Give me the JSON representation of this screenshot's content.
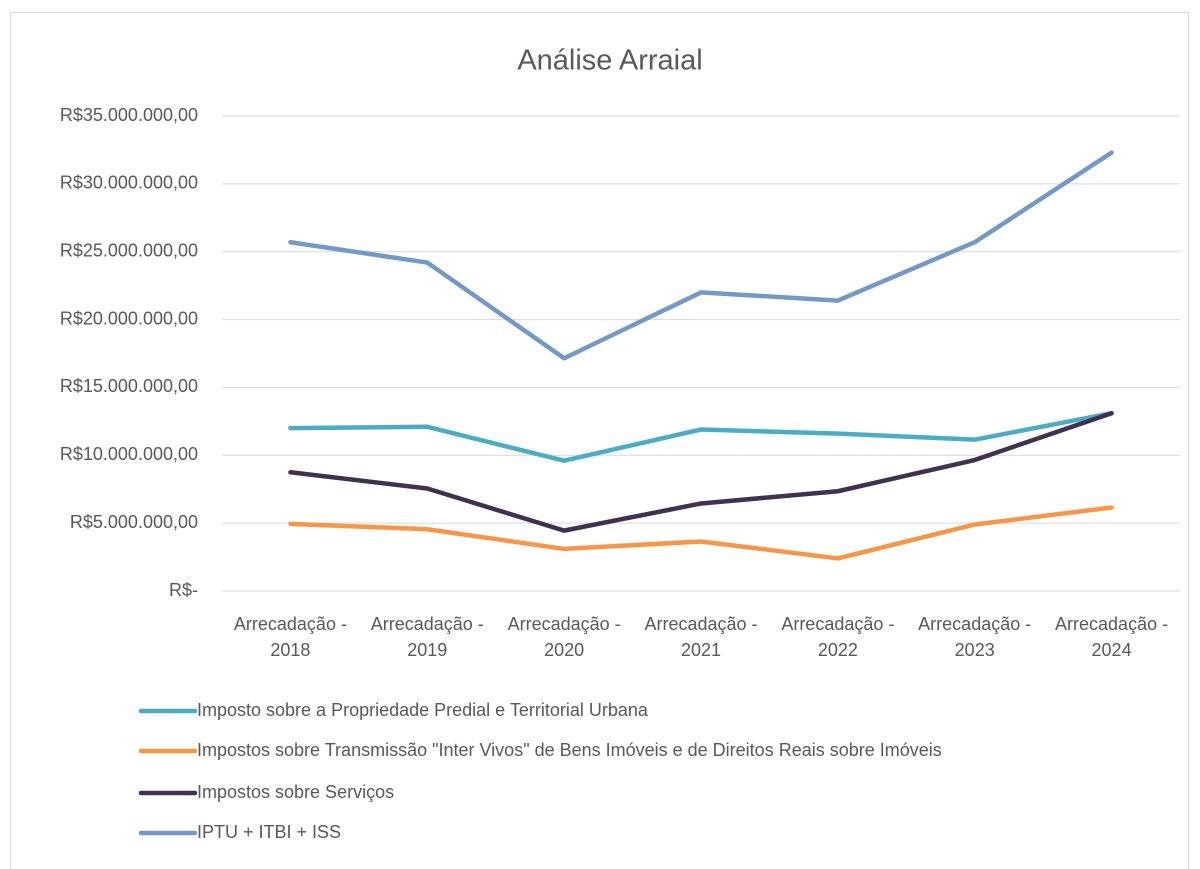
{
  "chart_data": {
    "type": "line",
    "title": "Análise Arraial",
    "categories": [
      "Arrecadação - 2018",
      "Arrecadação - 2019",
      "Arrecadação - 2020",
      "Arrecadação - 2021",
      "Arrecadação - 2022",
      "Arrecadação - 2023",
      "Arrecadação - 2024"
    ],
    "series": [
      {
        "name": "Imposto sobre a Propriedade Predial e Territorial Urbana",
        "color": "#4bacc6",
        "values": [
          12000000,
          12100000,
          9600000,
          11900000,
          11600000,
          11150000,
          13100000
        ]
      },
      {
        "name": "Impostos sobre Transmissão \"Inter Vivos\" de Bens Imóveis e de Direitos Reais sobre Imóveis",
        "color": "#f79646",
        "values": [
          4950000,
          4550000,
          3100000,
          3650000,
          2400000,
          4900000,
          6150000
        ]
      },
      {
        "name": "Impostos sobre Serviços",
        "color": "#403152",
        "values": [
          8750000,
          7550000,
          4450000,
          6450000,
          7350000,
          9650000,
          13100000
        ]
      },
      {
        "name": "IPTU + ITBI + ISS",
        "color": "#7399c6",
        "values": [
          25700000,
          24200000,
          17150000,
          22000000,
          21400000,
          25700000,
          32300000
        ]
      }
    ],
    "ylim": [
      0,
      35000000
    ],
    "yticks": [
      {
        "value": 0,
        "label": "R$-"
      },
      {
        "value": 5000000,
        "label": "R$5.000.000,00"
      },
      {
        "value": 10000000,
        "label": "R$10.000.000,00"
      },
      {
        "value": 15000000,
        "label": "R$15.000.000,00"
      },
      {
        "value": 20000000,
        "label": "R$20.000.000,00"
      },
      {
        "value": 25000000,
        "label": "R$25.000.000,00"
      },
      {
        "value": 30000000,
        "label": "R$30.000.000,00"
      },
      {
        "value": 35000000,
        "label": "R$35.000.000,00"
      }
    ],
    "grid": true,
    "legend": "bottom"
  }
}
